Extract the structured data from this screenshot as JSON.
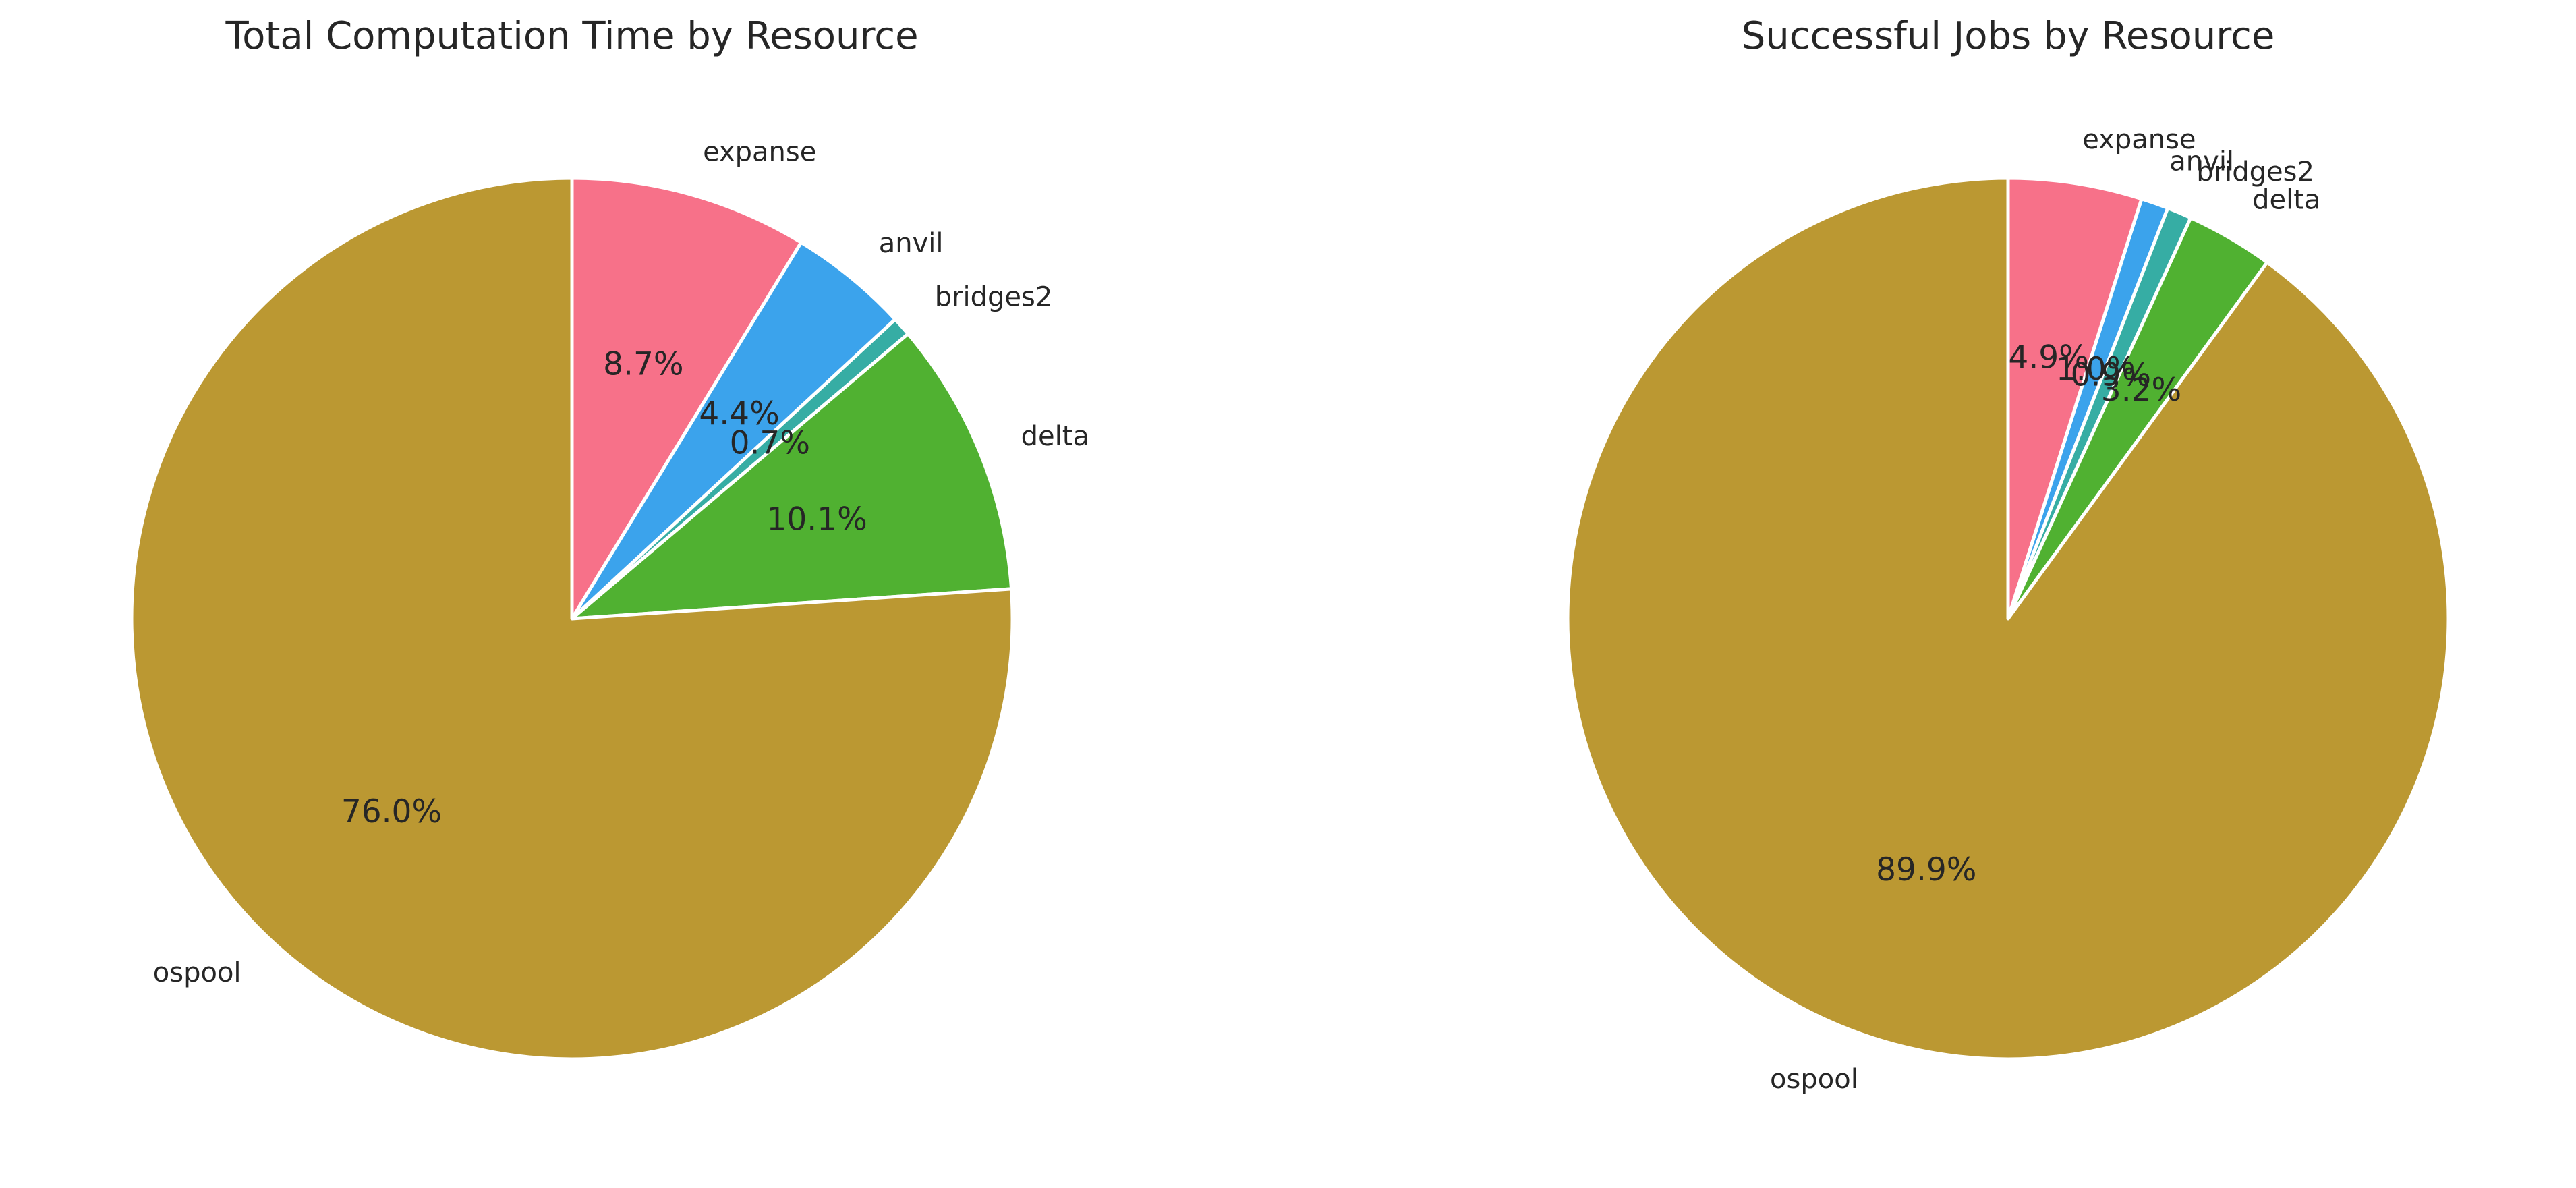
{
  "chart_data": [
    {
      "type": "pie",
      "title": "Total Computation Time by Resource",
      "start_angle_deg": 90,
      "direction": "clockwise",
      "categories": [
        "expanse",
        "anvil",
        "bridges2",
        "delta",
        "ospool"
      ],
      "values": [
        8.7,
        4.4,
        0.7,
        10.1,
        76.0
      ],
      "value_labels": [
        "8.7%",
        "4.4%",
        "0.7%",
        "10.1%",
        "76.0%"
      ],
      "colors": [
        "#f77189",
        "#3ba3ec",
        "#36ada4",
        "#50b131",
        "#bb9832"
      ]
    },
    {
      "type": "pie",
      "title": "Successful Jobs by Resource",
      "start_angle_deg": 90,
      "direction": "clockwise",
      "categories": [
        "expanse",
        "anvil",
        "bridges2",
        "delta",
        "ospool"
      ],
      "values": [
        4.9,
        1.0,
        0.9,
        3.2,
        89.9
      ],
      "value_labels": [
        "4.9%",
        "1.0%",
        "0.9%",
        "3.2%",
        "89.9%"
      ],
      "colors": [
        "#f77189",
        "#3ba3ec",
        "#36ada4",
        "#50b131",
        "#bb9832"
      ]
    }
  ]
}
